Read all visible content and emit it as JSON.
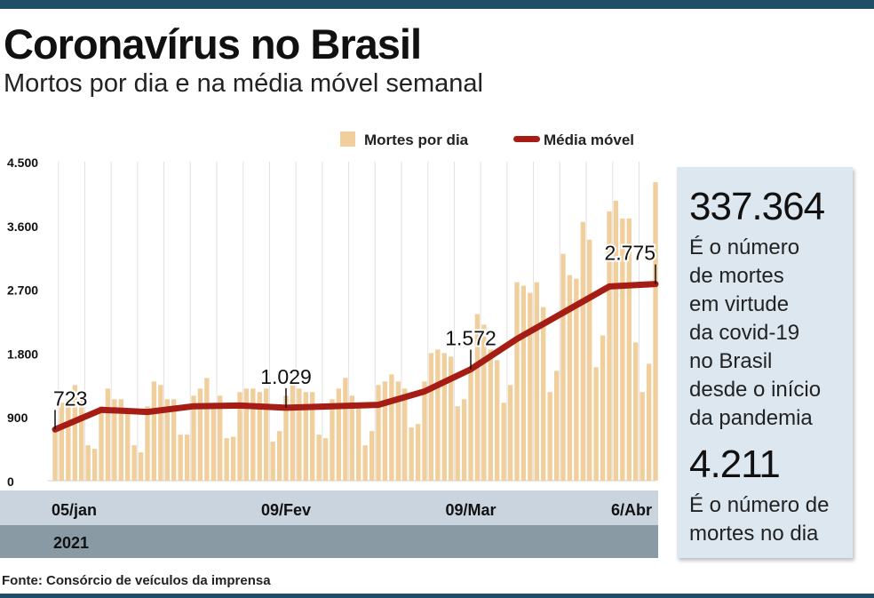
{
  "title": "Coronavírus no Brasil",
  "subtitle": "Mortos por dia e na média móvel semanal",
  "source": "Fonte: Consórcio de veículos da imprensa",
  "colors": {
    "bar": "#f0cf9c",
    "line": "#a51d15",
    "band_light": "#c9d4de",
    "band_dark": "#8a9aa4",
    "frame": "#1f4e66",
    "infobox_bg": "#dde7ef"
  },
  "infobox": {
    "total_deaths": "337.364",
    "total_deaths_desc": [
      "É o número",
      "de mortes",
      "em virtude",
      "da covid-19",
      "no Brasil",
      "desde o início",
      "da pandemia"
    ],
    "daily_deaths": "4.211",
    "daily_deaths_desc": [
      "É o número de",
      "mortes no dia"
    ]
  },
  "chart_data": {
    "type": "bar",
    "title": "Coronavírus no Brasil",
    "subtitle": "Mortos por dia e na média móvel semanal",
    "ylim": [
      0,
      4500
    ],
    "yticks": [
      0,
      900,
      1800,
      2700,
      3600,
      4500
    ],
    "ytick_labels": [
      "0",
      "900",
      "1.800",
      "2.700",
      "3.600",
      "4.500"
    ],
    "xtick_labels": [
      {
        "index": 0,
        "label": "05/jan"
      },
      {
        "index": 35,
        "label": "09/Fev"
      },
      {
        "index": 63,
        "label": "09/Mar"
      },
      {
        "index": 91,
        "label": "6/Abr"
      }
    ],
    "year_label": "2021",
    "grid": "vertical",
    "legend_position": "top-right",
    "series": [
      {
        "name": "Mortes por dia",
        "type": "bar",
        "values": [
          723,
          1100,
          1150,
          1350,
          1150,
          500,
          450,
          1050,
          1300,
          1150,
          1150,
          1000,
          500,
          400,
          1050,
          1400,
          1350,
          1150,
          1150,
          650,
          650,
          1200,
          1300,
          1450,
          1100,
          1200,
          600,
          620,
          1250,
          1300,
          1300,
          1250,
          1300,
          550,
          700,
          1200,
          1350,
          1300,
          1250,
          1250,
          650,
          600,
          1150,
          1300,
          1450,
          1200,
          1100,
          500,
          700,
          1350,
          1400,
          1500,
          1400,
          1300,
          750,
          800,
          1400,
          1800,
          1850,
          1800,
          1750,
          1050,
          1150,
          1600,
          2350,
          2200,
          1850,
          1700,
          1100,
          1350,
          2800,
          2750,
          2650,
          2800,
          2450,
          1250,
          1550,
          3200,
          2900,
          2850,
          3650,
          3400,
          1600,
          2050,
          3800,
          3950,
          3700,
          3700,
          1950,
          1250,
          1650,
          4211
        ],
        "color": "#f0cf9c"
      },
      {
        "name": "Média móvel",
        "type": "line",
        "points": [
          [
            0,
            723
          ],
          [
            7,
            1000
          ],
          [
            14,
            970
          ],
          [
            21,
            1050
          ],
          [
            28,
            1060
          ],
          [
            35,
            1029
          ],
          [
            42,
            1050
          ],
          [
            49,
            1070
          ],
          [
            56,
            1260
          ],
          [
            63,
            1572
          ],
          [
            70,
            2000
          ],
          [
            77,
            2370
          ],
          [
            84,
            2740
          ],
          [
            91,
            2775
          ]
        ],
        "color": "#a51d15"
      }
    ],
    "annotations": [
      {
        "index": 0,
        "value": 723,
        "label": "723"
      },
      {
        "index": 35,
        "value": 1029,
        "label": "1.029"
      },
      {
        "index": 63,
        "value": 1572,
        "label": "1.572"
      },
      {
        "index": 91,
        "value": 2775,
        "label": "2.775"
      }
    ]
  }
}
